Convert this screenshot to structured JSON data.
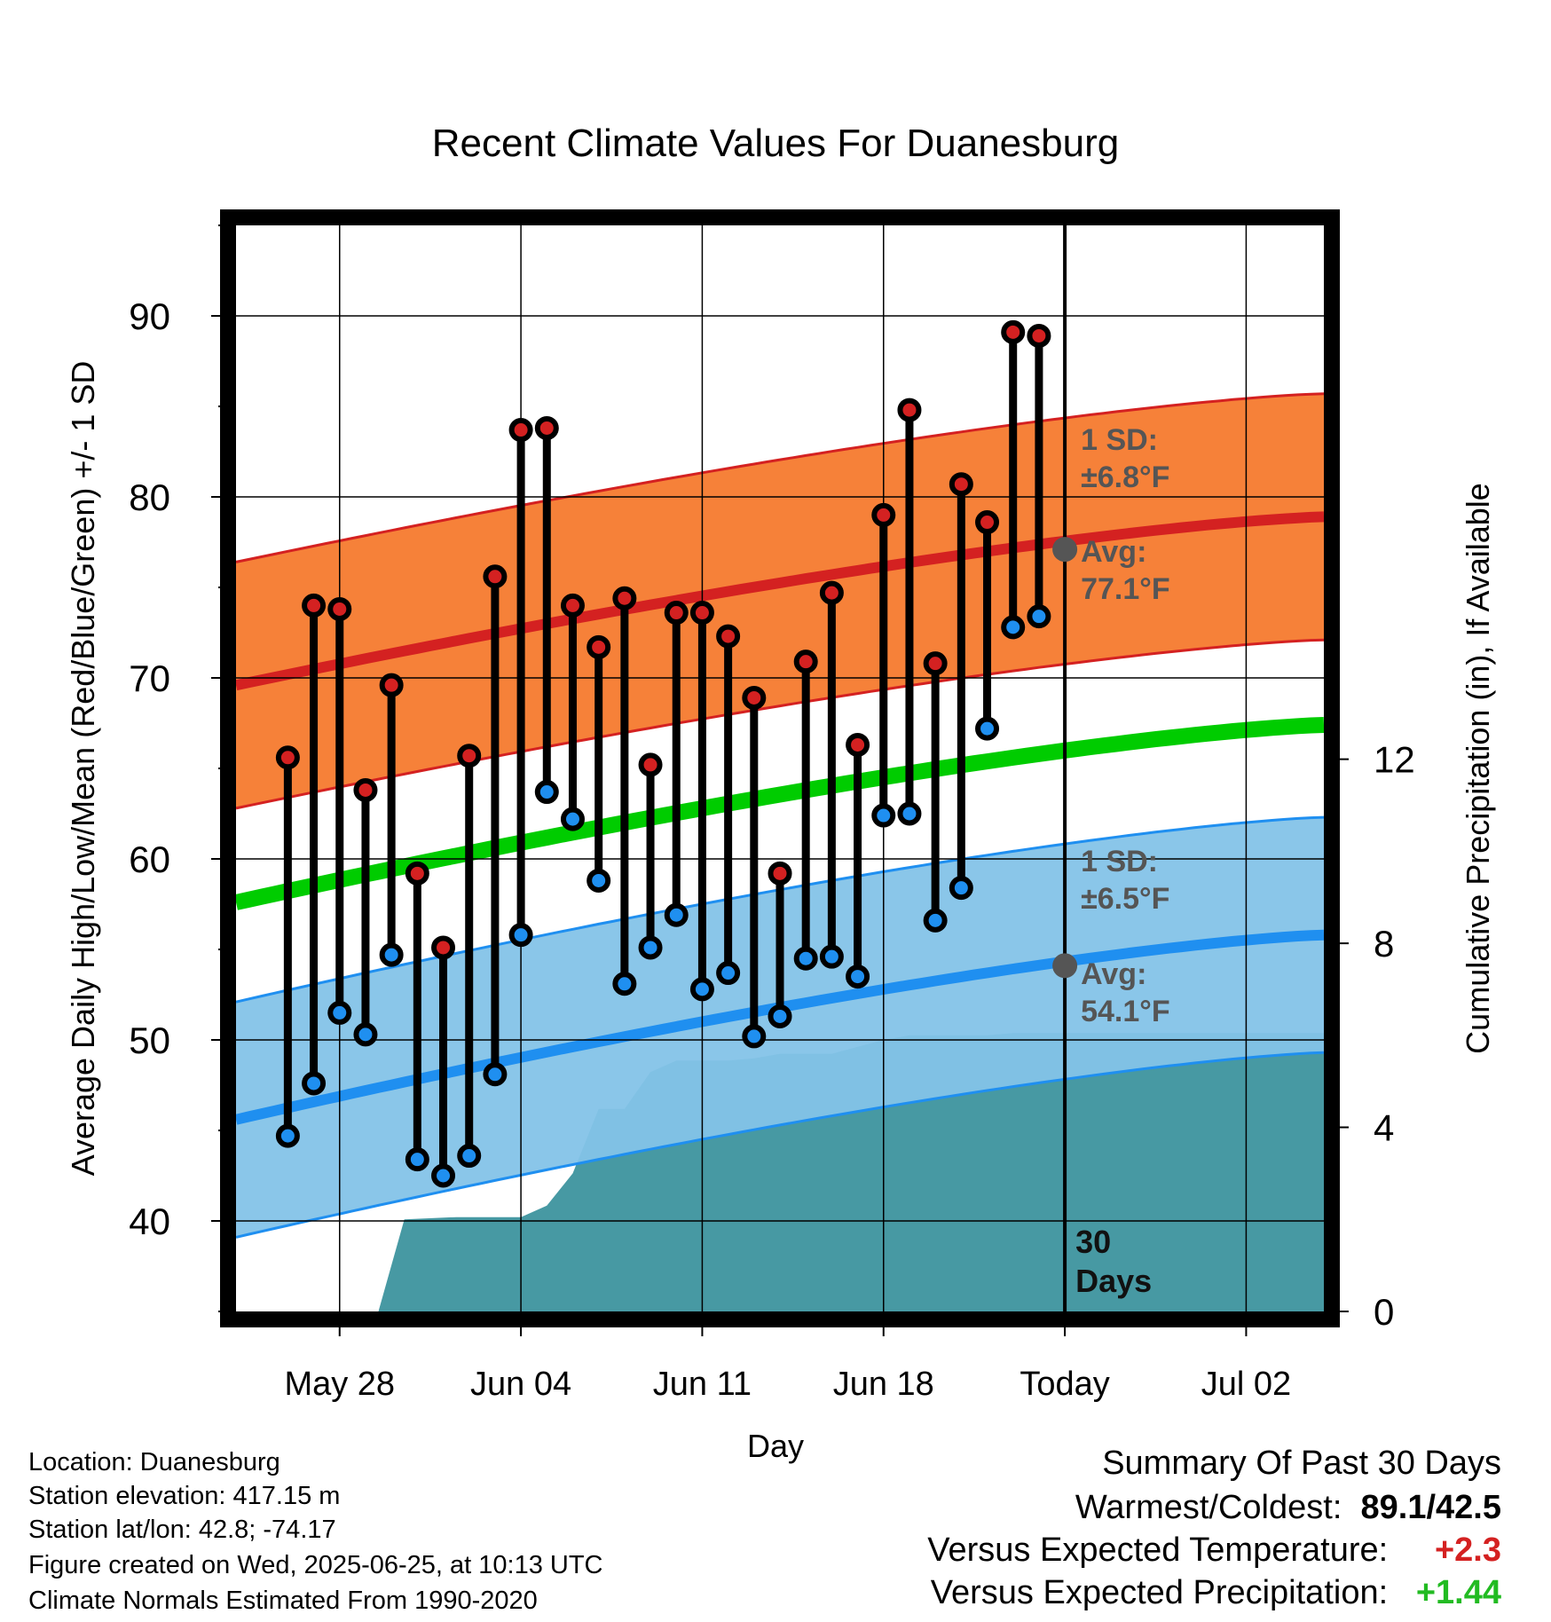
{
  "chart_data": {
    "type": "line",
    "title": "Recent Climate Values For Duanesburg",
    "xlabel": "Day",
    "ylabel": "Average Daily High/Low/Mean (Red/Blue/Green) +/- 1 SD",
    "y2label": "Cumulative Precipitation (in), If Available",
    "ylim": [
      35,
      95
    ],
    "y2lim": [
      0,
      23.6
    ],
    "yticks": [
      40,
      50,
      60,
      70,
      80,
      90
    ],
    "y2ticks": [
      0,
      4,
      8,
      12
    ],
    "xrange_days": [
      "2025-05-24",
      "2025-07-05"
    ],
    "xticks": [
      {
        "date": "2025-05-28",
        "label": "May 28"
      },
      {
        "date": "2025-06-04",
        "label": "Jun 04"
      },
      {
        "date": "2025-06-11",
        "label": "Jun 11"
      },
      {
        "date": "2025-06-18",
        "label": "Jun 18"
      },
      {
        "date": "2025-06-25",
        "label": "Today"
      },
      {
        "date": "2025-07-02",
        "label": "Jul 02"
      }
    ],
    "today": "2025-06-25",
    "window_label_line1": "30",
    "window_label_line2": "Days",
    "normal_high": {
      "start": 69.6,
      "end": 78.9,
      "sd": 6.8,
      "color": "#d42121",
      "band_color": "#f57a2e"
    },
    "normal_low": {
      "start": 45.6,
      "end": 55.8,
      "sd": 6.5,
      "color": "#1f8ff0",
      "band_color": "#84c3e8"
    },
    "normal_mean": {
      "start": 57.6,
      "end": 67.4,
      "color": "#00cc00"
    },
    "high_annotation": {
      "sd_line1": "1 SD:",
      "sd_line2": "±6.8°F",
      "avg_line1": "Avg:",
      "avg_line2": "77.1°F",
      "avg_value": 77.1
    },
    "low_annotation": {
      "sd_line1": "1 SD:",
      "sd_line2": "±6.5°F",
      "avg_line1": "Avg:",
      "avg_line2": "54.1°F",
      "avg_value": 54.1
    },
    "daily": [
      {
        "date": "2025-05-26",
        "high": 65.6,
        "low": 44.7
      },
      {
        "date": "2025-05-27",
        "high": 74.0,
        "low": 47.6
      },
      {
        "date": "2025-05-28",
        "high": 73.8,
        "low": 51.5
      },
      {
        "date": "2025-05-29",
        "high": 63.8,
        "low": 50.3
      },
      {
        "date": "2025-05-30",
        "high": 69.6,
        "low": 54.7
      },
      {
        "date": "2025-05-31",
        "high": 59.2,
        "low": 43.4
      },
      {
        "date": "2025-06-01",
        "high": 55.1,
        "low": 42.5
      },
      {
        "date": "2025-06-02",
        "high": 65.7,
        "low": 43.6
      },
      {
        "date": "2025-06-03",
        "high": 75.6,
        "low": 48.1
      },
      {
        "date": "2025-06-04",
        "high": 83.7,
        "low": 55.8
      },
      {
        "date": "2025-06-05",
        "high": 83.8,
        "low": 63.7
      },
      {
        "date": "2025-06-06",
        "high": 74.0,
        "low": 62.2
      },
      {
        "date": "2025-06-07",
        "high": 71.7,
        "low": 58.8
      },
      {
        "date": "2025-06-08",
        "high": 74.4,
        "low": 53.1
      },
      {
        "date": "2025-06-09",
        "high": 65.2,
        "low": 55.1
      },
      {
        "date": "2025-06-10",
        "high": 73.6,
        "low": 56.9
      },
      {
        "date": "2025-06-11",
        "high": 73.6,
        "low": 52.8
      },
      {
        "date": "2025-06-12",
        "high": 72.3,
        "low": 53.7
      },
      {
        "date": "2025-06-13",
        "high": 68.9,
        "low": 50.2
      },
      {
        "date": "2025-06-14",
        "high": 59.2,
        "low": 51.3
      },
      {
        "date": "2025-06-15",
        "high": 70.9,
        "low": 54.5
      },
      {
        "date": "2025-06-16",
        "high": 74.7,
        "low": 54.6
      },
      {
        "date": "2025-06-17",
        "high": 66.3,
        "low": 53.5
      },
      {
        "date": "2025-06-18",
        "high": 79.0,
        "low": 62.4
      },
      {
        "date": "2025-06-19",
        "high": 84.8,
        "low": 62.5
      },
      {
        "date": "2025-06-20",
        "high": 70.8,
        "low": 56.6
      },
      {
        "date": "2025-06-21",
        "high": 80.7,
        "low": 58.4
      },
      {
        "date": "2025-06-22",
        "high": 78.6,
        "low": 67.2
      },
      {
        "date": "2025-06-23",
        "high": 89.1,
        "low": 72.8
      },
      {
        "date": "2025-06-24",
        "high": 88.9,
        "low": 73.4
      }
    ],
    "precip_cumulative": [
      {
        "date": "2025-05-29.5",
        "value": 0.0
      },
      {
        "date": "2025-05-30.5",
        "value": 2.0
      },
      {
        "date": "2025-06-01.5",
        "value": 2.05
      },
      {
        "date": "2025-06-04",
        "value": 2.05
      },
      {
        "date": "2025-06-05",
        "value": 2.3
      },
      {
        "date": "2025-06-06",
        "value": 3.0
      },
      {
        "date": "2025-06-07",
        "value": 4.4
      },
      {
        "date": "2025-06-08",
        "value": 4.4
      },
      {
        "date": "2025-06-09",
        "value": 5.2
      },
      {
        "date": "2025-06-10",
        "value": 5.45
      },
      {
        "date": "2025-06-12",
        "value": 5.45
      },
      {
        "date": "2025-06-13",
        "value": 5.5
      },
      {
        "date": "2025-06-14",
        "value": 5.6
      },
      {
        "date": "2025-06-16",
        "value": 5.6
      },
      {
        "date": "2025-06-17",
        "value": 5.75
      },
      {
        "date": "2025-06-18",
        "value": 5.9
      },
      {
        "date": "2025-06-19",
        "value": 6.0
      },
      {
        "date": "2025-06-22",
        "value": 6.0
      },
      {
        "date": "2025-06-23",
        "value": 6.05
      },
      {
        "date": "2025-07-05",
        "value": 6.05
      }
    ],
    "precip_color": "#4799a3",
    "grid": true
  },
  "info": {
    "location": "Location: Duanesburg",
    "elevation": "Station elevation: 417.15 m",
    "latlon": "Station lat/lon: 42.8; -74.17",
    "created": "Figure created on Wed, 2025-06-25, at 10:13 UTC",
    "normals": "Climate Normals Estimated From 1990-2020"
  },
  "summary": {
    "title": "Summary Of Past 30 Days",
    "warm_cold_label": "Warmest/Coldest:",
    "warm_cold_value": "89.1/42.5",
    "temp_label": "Versus Expected Temperature:",
    "temp_value": "+2.3",
    "temp_color": "#d42121",
    "precip_label": "Versus Expected Precipitation:",
    "precip_value": "+1.44",
    "precip_color": "#22bb22"
  }
}
